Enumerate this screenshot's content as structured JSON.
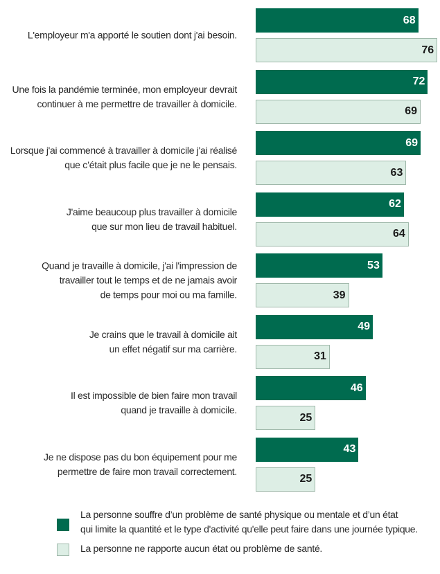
{
  "chart_data": {
    "type": "bar",
    "orientation": "horizontal",
    "categories": [
      [
        "L'employeur m'a apporté le soutien dont j'ai besoin."
      ],
      [
        "Une fois la pandémie terminée, mon employeur devrait",
        "continuer à me permettre de travailler à domicile."
      ],
      [
        "Lorsque j'ai commencé à travailler à domicile j'ai réalisé",
        "que c’était plus facile que je ne le pensais."
      ],
      [
        "J'aime beaucoup plus travailler à domicile",
        "que sur mon lieu de travail habituel."
      ],
      [
        "Quand je travaille à domicile, j'ai l'impression de",
        "travailler tout le temps et de ne jamais avoir",
        "de temps pour moi ou ma famille."
      ],
      [
        "Je crains que le travail à domicile ait",
        "un effet négatif sur ma carrière."
      ],
      [
        "Il est impossible de bien faire mon travail",
        "quand je travaille à domicile."
      ],
      [
        "Je ne dispose pas du bon équipement pour me",
        "permettre de faire mon travail correctement."
      ]
    ],
    "series": [
      {
        "name": "La personne souffre d’un problème de santé physique ou mentale et d’un état qui limite la quantité et le type d'activité qu'elle peut faire dans une journée typique.",
        "legend_lines": [
          "La personne souffre d’un problème de santé physique ou mentale et d’un état",
          "qui limite la quantité et le type d'activité qu'elle peut faire dans une journée typique."
        ],
        "values": [
          68,
          72,
          69,
          62,
          53,
          49,
          46,
          43
        ],
        "color": "#006B4F",
        "label_color": "#ffffff"
      },
      {
        "name": "La personne ne rapporte aucun état ou problème de santé.",
        "legend_lines": [
          "La personne ne rapporte aucun état ou problème de santé."
        ],
        "values": [
          76,
          69,
          63,
          64,
          39,
          31,
          25,
          25
        ],
        "color": "#DDEEE5",
        "border": "#9FB8AA",
        "label_color": "#1a1a1a"
      }
    ],
    "title": "",
    "xlabel": "",
    "ylabel": "",
    "xlim": [
      0,
      78
    ],
    "grid": false,
    "legend": "bottom-left"
  }
}
